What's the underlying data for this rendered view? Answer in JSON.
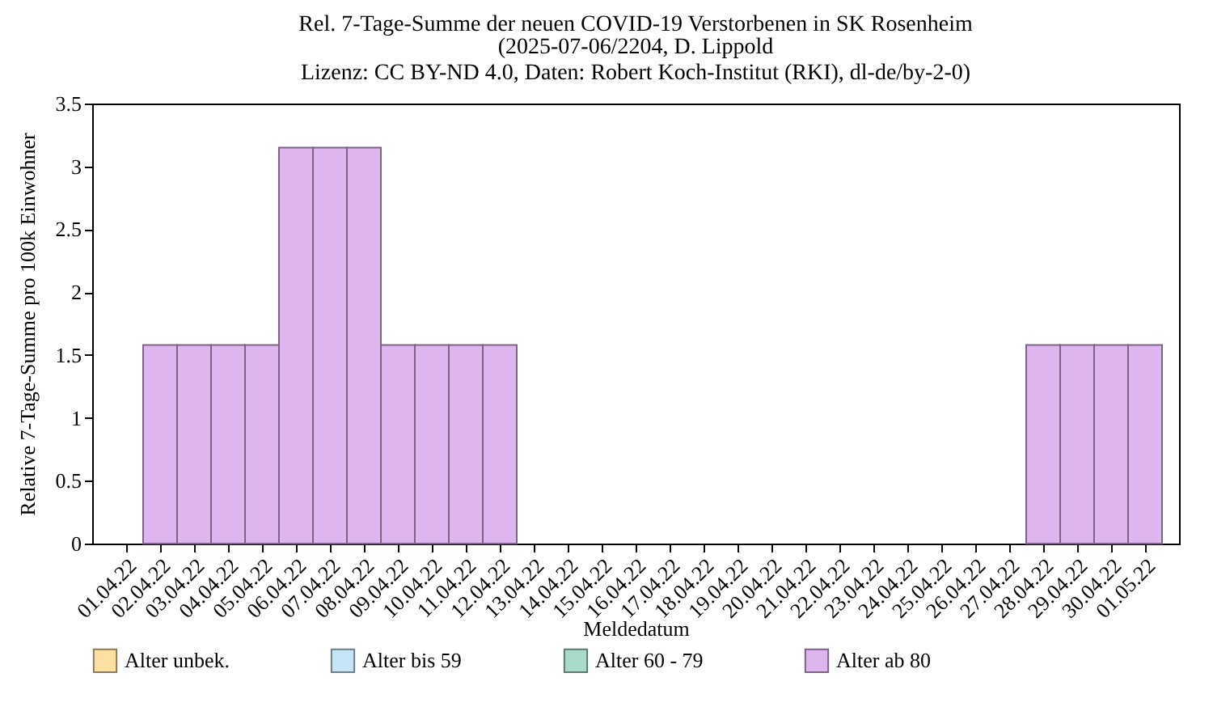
{
  "chart_data": {
    "type": "bar",
    "title": "Rel. 7-Tage-Summe der neuen COVID-19 Verstorbenen in SK Rosenheim",
    "subtitle": "(2025-07-06/2204, D. Lippold\nLizenz: CC BY-ND 4.0, Daten: Robert Koch-Institut (RKI), dl-de/by-2-0)",
    "xlabel": "Meldedatum",
    "ylabel": "Relative 7-Tage-Summe pro 100k Einwohner",
    "categories": [
      "01.04.22",
      "02.04.22",
      "03.04.22",
      "04.04.22",
      "05.04.22",
      "06.04.22",
      "07.04.22",
      "08.04.22",
      "09.04.22",
      "10.04.22",
      "11.04.22",
      "12.04.22",
      "13.04.22",
      "14.04.22",
      "15.04.22",
      "16.04.22",
      "17.04.22",
      "18.04.22",
      "19.04.22",
      "20.04.22",
      "21.04.22",
      "22.04.22",
      "23.04.22",
      "24.04.22",
      "25.04.22",
      "26.04.22",
      "27.04.22",
      "28.04.22",
      "29.04.22",
      "30.04.22",
      "01.05.22"
    ],
    "stacked": true,
    "series": [
      {
        "name": "Alter unbek.",
        "color": "#fbe0a0",
        "values": [
          0,
          0,
          0,
          0,
          0,
          0,
          0,
          0,
          0,
          0,
          0,
          0,
          0,
          0,
          0,
          0,
          0,
          0,
          0,
          0,
          0,
          0,
          0,
          0,
          0,
          0,
          0,
          0,
          0,
          0,
          0
        ]
      },
      {
        "name": "Alter bis 59",
        "color": "#c6e6f8",
        "values": [
          0,
          0,
          0,
          0,
          0,
          0,
          0,
          0,
          0,
          0,
          0,
          0,
          0,
          0,
          0,
          0,
          0,
          0,
          0,
          0,
          0,
          0,
          0,
          0,
          0,
          0,
          0,
          0,
          0,
          0,
          0
        ]
      },
      {
        "name": "Alter 60 - 79",
        "color": "#a8dcc8",
        "values": [
          0,
          0,
          0,
          0,
          0,
          0,
          0,
          0,
          0,
          0,
          0,
          0,
          0,
          0,
          0,
          0,
          0,
          0,
          0,
          0,
          0,
          0,
          0,
          0,
          0,
          0,
          0,
          0,
          0,
          0,
          0
        ]
      },
      {
        "name": "Alter ab 80",
        "color": "#dfb5ef",
        "values": [
          0,
          1.58,
          1.58,
          1.58,
          1.58,
          3.15,
          3.15,
          3.15,
          1.58,
          1.58,
          1.58,
          1.58,
          0,
          0,
          0,
          0,
          0,
          0,
          0,
          0,
          0,
          0,
          0,
          0,
          0,
          0,
          0,
          1.58,
          1.58,
          1.58,
          1.58
        ]
      }
    ],
    "ylim": [
      0,
      3.5
    ],
    "yticks": [
      0,
      0.5,
      1,
      1.5,
      2,
      2.5,
      3,
      3.5
    ],
    "grid": false,
    "legend": "bottom"
  }
}
